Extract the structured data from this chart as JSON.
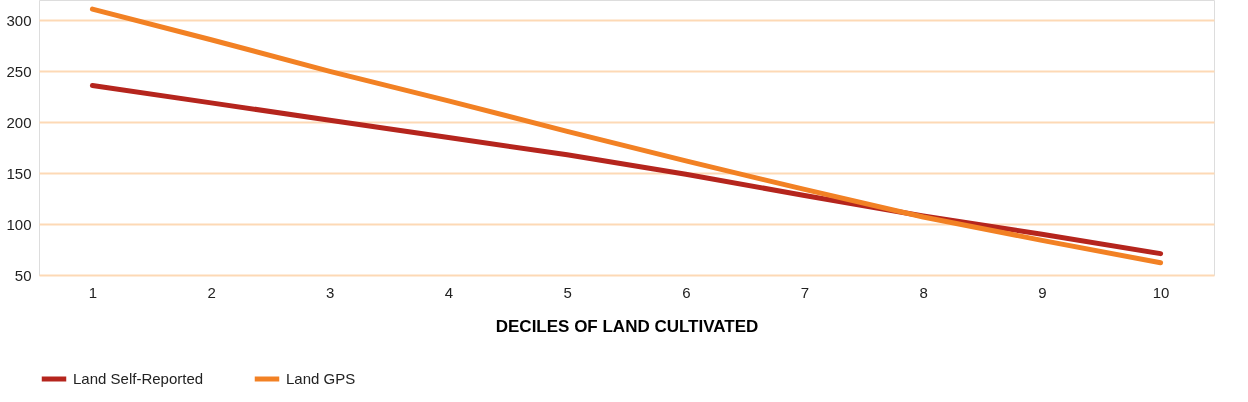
{
  "chart_data": {
    "type": "line",
    "xlabel": "DECILES OF LAND CULTIVATED",
    "categories": [
      "1",
      "2",
      "3",
      "4",
      "5",
      "6",
      "7",
      "8",
      "9",
      "10"
    ],
    "series": [
      {
        "name": "Land Self-Reported",
        "color": "#b5251d",
        "values": [
          236,
          219,
          202,
          185,
          168,
          149,
          128,
          108,
          90,
          71
        ]
      },
      {
        "name": "Land GPS",
        "color": "#f28124",
        "values": [
          311,
          281,
          250,
          221,
          191,
          162,
          134,
          107,
          84,
          62
        ]
      }
    ],
    "ylim": [
      50,
      320
    ],
    "yticks": [
      50,
      100,
      150,
      200,
      250,
      300
    ],
    "grid": "y",
    "legend": "bottom left",
    "marker": "none",
    "line_style": "solid"
  }
}
